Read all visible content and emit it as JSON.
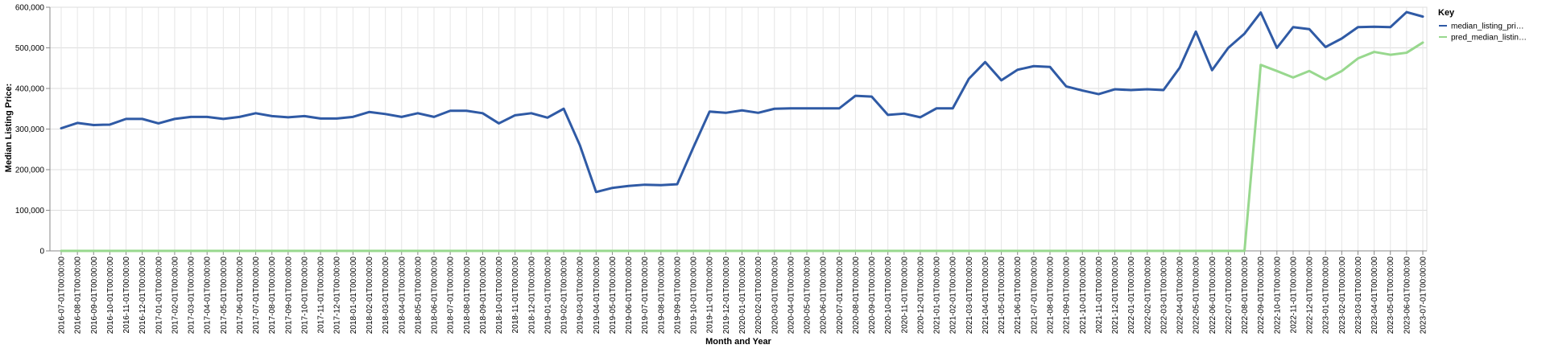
{
  "chart_data": {
    "type": "line",
    "title": "",
    "xlabel": "Month and Year",
    "ylabel": "Median Listing Price:",
    "ylim": [
      0,
      600000
    ],
    "y_ticks": [
      "0",
      "100,000",
      "200,000",
      "300,000",
      "400,000",
      "500,000",
      "600,000"
    ],
    "grid": true,
    "legend": {
      "title": "Key",
      "placement": "top-right",
      "entries": [
        "median_listing_pri…",
        "pred_median_listin…"
      ]
    },
    "x": [
      "2016-07-01T00:00:00",
      "2016-08-01T00:00:00",
      "2016-09-01T00:00:00",
      "2016-10-01T00:00:00",
      "2016-11-01T00:00:00",
      "2016-12-01T00:00:00",
      "2017-01-01T00:00:00",
      "2017-02-01T00:00:00",
      "2017-03-01T00:00:00",
      "2017-04-01T00:00:00",
      "2017-05-01T00:00:00",
      "2017-06-01T00:00:00",
      "2017-07-01T00:00:00",
      "2017-08-01T00:00:00",
      "2017-09-01T00:00:00",
      "2017-10-01T00:00:00",
      "2017-11-01T00:00:00",
      "2017-12-01T00:00:00",
      "2018-01-01T00:00:00",
      "2018-02-01T00:00:00",
      "2018-03-01T00:00:00",
      "2018-04-01T00:00:00",
      "2018-05-01T00:00:00",
      "2018-06-01T00:00:00",
      "2018-07-01T00:00:00",
      "2018-08-01T00:00:00",
      "2018-09-01T00:00:00",
      "2018-10-01T00:00:00",
      "2018-11-01T00:00:00",
      "2018-12-01T00:00:00",
      "2019-01-01T00:00:00",
      "2019-02-01T00:00:00",
      "2019-03-01T00:00:00",
      "2019-04-01T00:00:00",
      "2019-05-01T00:00:00",
      "2019-06-01T00:00:00",
      "2019-07-01T00:00:00",
      "2019-08-01T00:00:00",
      "2019-09-01T00:00:00",
      "2019-10-01T00:00:00",
      "2019-11-01T00:00:00",
      "2019-12-01T00:00:00",
      "2020-01-01T00:00:00",
      "2020-02-01T00:00:00",
      "2020-03-01T00:00:00",
      "2020-04-01T00:00:00",
      "2020-05-01T00:00:00",
      "2020-06-01T00:00:00",
      "2020-07-01T00:00:00",
      "2020-08-01T00:00:00",
      "2020-09-01T00:00:00",
      "2020-10-01T00:00:00",
      "2020-11-01T00:00:00",
      "2020-12-01T00:00:00",
      "2021-01-01T00:00:00",
      "2021-02-01T00:00:00",
      "2021-03-01T00:00:00",
      "2021-04-01T00:00:00",
      "2021-05-01T00:00:00",
      "2021-06-01T00:00:00",
      "2021-07-01T00:00:00",
      "2021-08-01T00:00:00",
      "2021-09-01T00:00:00",
      "2021-10-01T00:00:00",
      "2021-11-01T00:00:00",
      "2021-12-01T00:00:00",
      "2022-01-01T00:00:00",
      "2022-02-01T00:00:00",
      "2022-03-01T00:00:00",
      "2022-04-01T00:00:00",
      "2022-05-01T00:00:00",
      "2022-06-01T00:00:00",
      "2022-07-01T00:00:00",
      "2022-08-01T00:00:00",
      "2022-09-01T00:00:00",
      "2022-10-01T00:00:00",
      "2022-11-01T00:00:00",
      "2022-12-01T00:00:00",
      "2023-01-01T00:00:00",
      "2023-02-01T00:00:00",
      "2023-03-01T00:00:00",
      "2023-04-01T00:00:00",
      "2023-05-01T00:00:00",
      "2023-06-01T00:00:00",
      "2023-07-01T00:00:00"
    ],
    "series": [
      {
        "name": "median_listing_pri…",
        "color": "#2f5aa5",
        "values": [
          302000,
          315000,
          310000,
          311000,
          325000,
          325000,
          314000,
          325000,
          330000,
          330000,
          325000,
          330000,
          339000,
          332000,
          329000,
          332000,
          326000,
          326000,
          330000,
          342000,
          337000,
          330000,
          339000,
          330000,
          345000,
          345000,
          339000,
          314000,
          334000,
          339000,
          328000,
          350000,
          260000,
          145000,
          155000,
          160000,
          163000,
          162000,
          164000,
          255000,
          343000,
          340000,
          346000,
          340000,
          350000,
          351000,
          351000,
          351000,
          351000,
          382000,
          380000,
          335000,
          338000,
          329000,
          351000,
          351000,
          424000,
          465000,
          420000,
          446000,
          455000,
          453000,
          405000,
          395000,
          386000,
          398000,
          396000,
          398000,
          396000,
          451000,
          540000,
          445000,
          500000,
          535000,
          587000,
          500000,
          551000,
          546000,
          502000,
          523000,
          551000,
          552000,
          551000,
          588000,
          577000
        ]
      },
      {
        "name": "pred_median_listin…",
        "color": "#98d88e",
        "values": [
          0,
          0,
          0,
          0,
          0,
          0,
          0,
          0,
          0,
          0,
          0,
          0,
          0,
          0,
          0,
          0,
          0,
          0,
          0,
          0,
          0,
          0,
          0,
          0,
          0,
          0,
          0,
          0,
          0,
          0,
          0,
          0,
          0,
          0,
          0,
          0,
          0,
          0,
          0,
          0,
          0,
          0,
          0,
          0,
          0,
          0,
          0,
          0,
          0,
          0,
          0,
          0,
          0,
          0,
          0,
          0,
          0,
          0,
          0,
          0,
          0,
          0,
          0,
          0,
          0,
          0,
          0,
          0,
          0,
          0,
          0,
          0,
          0,
          0,
          458000,
          443000,
          427000,
          443000,
          422000,
          443000,
          474000,
          490000,
          483000,
          488000,
          513000
        ]
      }
    ]
  }
}
